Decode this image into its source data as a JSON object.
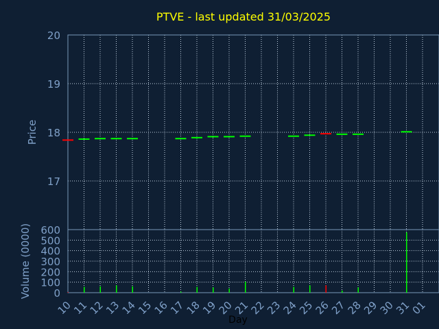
{
  "chart_data": [
    {
      "type": "candlestick",
      "title": "PTVE - last updated 31/03/2025",
      "ylabel": "Price",
      "ylim": [
        16.0,
        20.0
      ],
      "yticks": [
        "17",
        "18",
        "19",
        "20"
      ],
      "grid": true,
      "candles": [
        {
          "day": "10",
          "open": 17.84,
          "high": 17.84,
          "low": 17.83,
          "close": 17.83,
          "direction": "down"
        },
        {
          "day": "11",
          "open": 17.85,
          "high": 17.86,
          "low": 17.85,
          "close": 17.86,
          "direction": "up"
        },
        {
          "day": "12",
          "open": 17.86,
          "high": 17.87,
          "low": 17.86,
          "close": 17.87,
          "direction": "up"
        },
        {
          "day": "13",
          "open": 17.86,
          "high": 17.87,
          "low": 17.86,
          "close": 17.87,
          "direction": "up"
        },
        {
          "day": "14",
          "open": 17.86,
          "high": 17.87,
          "low": 17.86,
          "close": 17.87,
          "direction": "up"
        },
        {
          "day": "17",
          "open": 17.86,
          "high": 17.87,
          "low": 17.86,
          "close": 17.87,
          "direction": "up"
        },
        {
          "day": "18",
          "open": 17.87,
          "high": 17.89,
          "low": 17.86,
          "close": 17.89,
          "direction": "up"
        },
        {
          "day": "19",
          "open": 17.89,
          "high": 17.91,
          "low": 17.89,
          "close": 17.91,
          "direction": "up"
        },
        {
          "day": "20",
          "open": 17.9,
          "high": 17.91,
          "low": 17.9,
          "close": 17.91,
          "direction": "up"
        },
        {
          "day": "21",
          "open": 17.91,
          "high": 17.92,
          "low": 17.91,
          "close": 17.92,
          "direction": "up"
        },
        {
          "day": "24",
          "open": 17.91,
          "high": 17.92,
          "low": 17.91,
          "close": 17.92,
          "direction": "up"
        },
        {
          "day": "25",
          "open": 17.93,
          "high": 17.94,
          "low": 17.93,
          "close": 17.94,
          "direction": "up"
        },
        {
          "day": "26",
          "open": 17.97,
          "high": 17.97,
          "low": 17.96,
          "close": 17.96,
          "direction": "down"
        },
        {
          "day": "27",
          "open": 17.95,
          "high": 17.96,
          "low": 17.95,
          "close": 17.96,
          "direction": "up"
        },
        {
          "day": "28",
          "open": 17.95,
          "high": 17.96,
          "low": 17.95,
          "close": 17.96,
          "direction": "up"
        },
        {
          "day": "31",
          "open": 18.0,
          "high": 18.01,
          "low": 18.0,
          "close": 18.01,
          "direction": "up"
        }
      ]
    },
    {
      "type": "bar",
      "ylabel": "Volume (0000)",
      "xlabel": "Day",
      "ylim": [
        0,
        600
      ],
      "yticks": [
        "0",
        "100",
        "200",
        "300",
        "400",
        "500",
        "600"
      ],
      "grid": true,
      "xticks": [
        "10",
        "11",
        "12",
        "13",
        "14",
        "15",
        "16",
        "17",
        "18",
        "19",
        "20",
        "21",
        "22",
        "23",
        "24",
        "25",
        "26",
        "27",
        "28",
        "29",
        "30",
        "31",
        "01"
      ],
      "bars": [
        {
          "day": "10",
          "value": 5,
          "direction": "down"
        },
        {
          "day": "11",
          "value": 55,
          "direction": "up"
        },
        {
          "day": "12",
          "value": 60,
          "direction": "up"
        },
        {
          "day": "13",
          "value": 70,
          "direction": "up"
        },
        {
          "day": "14",
          "value": 60,
          "direction": "up"
        },
        {
          "day": "17",
          "value": 10,
          "direction": "up"
        },
        {
          "day": "18",
          "value": 55,
          "direction": "up"
        },
        {
          "day": "19",
          "value": 50,
          "direction": "up"
        },
        {
          "day": "20",
          "value": 40,
          "direction": "up"
        },
        {
          "day": "21",
          "value": 105,
          "direction": "up"
        },
        {
          "day": "24",
          "value": 55,
          "direction": "up"
        },
        {
          "day": "25",
          "value": 70,
          "direction": "up"
        },
        {
          "day": "26",
          "value": 70,
          "direction": "down"
        },
        {
          "day": "27",
          "value": 20,
          "direction": "up"
        },
        {
          "day": "28",
          "value": 50,
          "direction": "up"
        },
        {
          "day": "31",
          "value": 575,
          "direction": "up"
        }
      ]
    }
  ],
  "colors": {
    "background": "#0f1f33",
    "title": "#ffff00",
    "axis_text": "#7fa0c8",
    "frame": "#7a98b8",
    "grid": "#c0d0e0",
    "up": "#00ff00",
    "down": "#ff0000"
  }
}
